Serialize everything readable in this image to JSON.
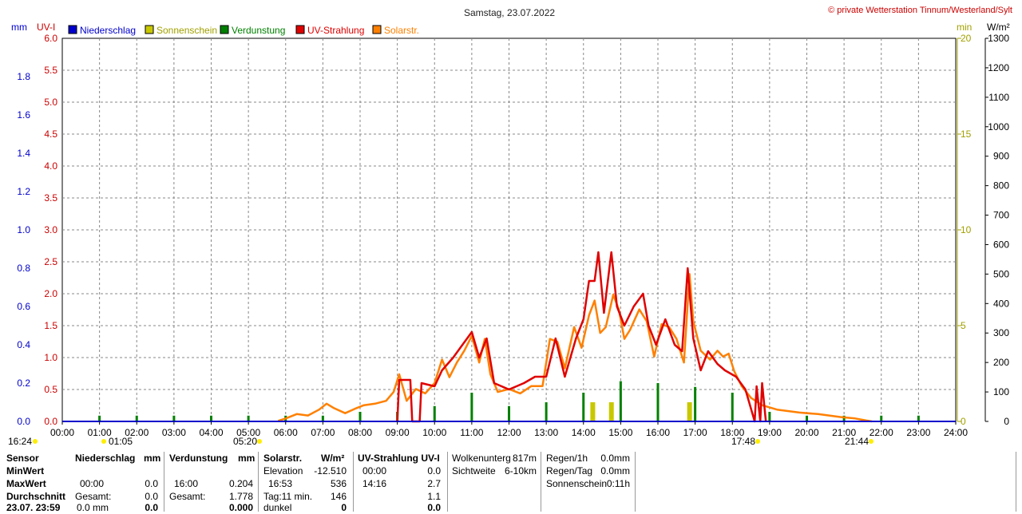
{
  "header": {
    "title": "Samstag, 23.07.2022",
    "copyright": "© private Wetterstation Tinnum/Westerland/Sylt",
    "unit_mm": "mm",
    "unit_uv": "UV-I",
    "unit_min": "min",
    "unit_wm2": "W/m²"
  },
  "legend": [
    {
      "label": "Niederschlag",
      "color": "#0000cc"
    },
    {
      "label": "Sonnenschein",
      "color": "#c8c800"
    },
    {
      "label": "Verdunstung",
      "color": "#008000"
    },
    {
      "label": "UV-Strahlung",
      "color": "#e00000"
    },
    {
      "label": "Solarstr.",
      "color": "#ff8000"
    }
  ],
  "chart_data": {
    "type": "line",
    "x_axis": {
      "ticks": [
        "00:00",
        "01:00",
        "02:00",
        "03:00",
        "04:00",
        "05:00",
        "06:00",
        "07:00",
        "08:00",
        "09:00",
        "10:00",
        "11:00",
        "12:00",
        "13:00",
        "14:00",
        "15:00",
        "16:00",
        "17:00",
        "18:00",
        "19:00",
        "20:00",
        "21:00",
        "22:00",
        "23:00",
        "24:00"
      ],
      "range_hours": [
        0,
        24
      ]
    },
    "axes": {
      "mm": {
        "ticks": [
          "1.8",
          "1.6",
          "1.4",
          "1.2",
          "1.0",
          "0.8",
          "0.6",
          "0.4",
          "0.2",
          "0.0"
        ],
        "range": [
          0,
          2.0
        ],
        "color": "#0000cc"
      },
      "uv": {
        "ticks": [
          "6.0",
          "5.5",
          "5.0",
          "4.5",
          "4.0",
          "3.5",
          "3.0",
          "2.5",
          "2.0",
          "1.5",
          "1.0",
          "0.5",
          "0.0"
        ],
        "range": [
          0,
          6.0
        ],
        "color": "#cc0000"
      },
      "min": {
        "ticks": [
          "20",
          "15",
          "10",
          "5",
          "0"
        ],
        "range": [
          0,
          20
        ],
        "color": "#a0a000"
      },
      "wm2": {
        "ticks": [
          "1300",
          "1200",
          "1100",
          "1000",
          "900",
          "800",
          "700",
          "600",
          "500",
          "400",
          "300",
          "200",
          "100",
          "0"
        ],
        "range": [
          0,
          1300
        ],
        "color": "#000000"
      }
    },
    "grid": true,
    "events": [
      {
        "label": "16:24",
        "hour": 0.0,
        "row": 1
      },
      {
        "label": "01:05",
        "hour": 1.08,
        "row": 1
      },
      {
        "label": "05:20",
        "hour": 5.33,
        "row": 1
      },
      {
        "label": "17:48",
        "hour": 17.8,
        "row": 1
      },
      {
        "label": "21:44",
        "hour": 21.73,
        "row": 1
      }
    ],
    "series": [
      {
        "name": "Solarstr.",
        "axis": "wm2",
        "color": "#ff8000",
        "points": [
          [
            5.8,
            2
          ],
          [
            6.0,
            10
          ],
          [
            6.3,
            25
          ],
          [
            6.6,
            20
          ],
          [
            6.9,
            40
          ],
          [
            7.1,
            60
          ],
          [
            7.3,
            45
          ],
          [
            7.6,
            28
          ],
          [
            7.9,
            45
          ],
          [
            8.1,
            55
          ],
          [
            8.4,
            60
          ],
          [
            8.7,
            70
          ],
          [
            8.9,
            100
          ],
          [
            9.05,
            160
          ],
          [
            9.25,
            70
          ],
          [
            9.5,
            110
          ],
          [
            9.75,
            95
          ],
          [
            10.0,
            130
          ],
          [
            10.2,
            210
          ],
          [
            10.4,
            150
          ],
          [
            10.6,
            200
          ],
          [
            10.8,
            240
          ],
          [
            11.0,
            290
          ],
          [
            11.2,
            200
          ],
          [
            11.35,
            280
          ],
          [
            11.5,
            160
          ],
          [
            11.7,
            100
          ],
          [
            12.0,
            110
          ],
          [
            12.3,
            95
          ],
          [
            12.6,
            120
          ],
          [
            12.9,
            120
          ],
          [
            13.1,
            280
          ],
          [
            13.3,
            270
          ],
          [
            13.5,
            180
          ],
          [
            13.75,
            320
          ],
          [
            13.95,
            250
          ],
          [
            14.15,
            360
          ],
          [
            14.3,
            410
          ],
          [
            14.45,
            300
          ],
          [
            14.6,
            320
          ],
          [
            14.8,
            430
          ],
          [
            14.95,
            380
          ],
          [
            15.1,
            280
          ],
          [
            15.25,
            310
          ],
          [
            15.5,
            380
          ],
          [
            15.7,
            340
          ],
          [
            15.9,
            220
          ],
          [
            16.1,
            330
          ],
          [
            16.3,
            320
          ],
          [
            16.5,
            280
          ],
          [
            16.7,
            200
          ],
          [
            16.85,
            500
          ],
          [
            16.95,
            340
          ],
          [
            17.15,
            240
          ],
          [
            17.4,
            210
          ],
          [
            17.6,
            240
          ],
          [
            17.75,
            220
          ],
          [
            17.9,
            230
          ],
          [
            18.05,
            170
          ],
          [
            18.25,
            120
          ],
          [
            18.5,
            80
          ],
          [
            18.8,
            55
          ],
          [
            19.2,
            40
          ],
          [
            19.8,
            30
          ],
          [
            20.3,
            25
          ],
          [
            20.9,
            15
          ],
          [
            21.3,
            10
          ],
          [
            21.6,
            3
          ],
          [
            21.75,
            0
          ]
        ]
      },
      {
        "name": "UV-Strahlung",
        "axis": "uv",
        "color": "#e00000",
        "points": [
          [
            9.0,
            0
          ],
          [
            9.05,
            0.65
          ],
          [
            9.35,
            0.65
          ],
          [
            9.4,
            0
          ],
          [
            9.6,
            0
          ],
          [
            9.65,
            0.6
          ],
          [
            10.0,
            0.55
          ],
          [
            10.2,
            0.8
          ],
          [
            10.5,
            1.0
          ],
          [
            10.75,
            1.2
          ],
          [
            11.0,
            1.4
          ],
          [
            11.2,
            1.0
          ],
          [
            11.4,
            1.3
          ],
          [
            11.6,
            0.6
          ],
          [
            12.0,
            0.5
          ],
          [
            12.4,
            0.6
          ],
          [
            12.7,
            0.7
          ],
          [
            13.0,
            0.7
          ],
          [
            13.25,
            1.3
          ],
          [
            13.5,
            0.7
          ],
          [
            13.8,
            1.3
          ],
          [
            14.0,
            1.6
          ],
          [
            14.15,
            2.2
          ],
          [
            14.3,
            2.2
          ],
          [
            14.4,
            2.65
          ],
          [
            14.55,
            1.7
          ],
          [
            14.75,
            2.65
          ],
          [
            14.9,
            1.8
          ],
          [
            15.1,
            1.5
          ],
          [
            15.35,
            1.8
          ],
          [
            15.6,
            2.0
          ],
          [
            15.75,
            1.5
          ],
          [
            15.95,
            1.2
          ],
          [
            16.2,
            1.6
          ],
          [
            16.45,
            1.2
          ],
          [
            16.65,
            1.1
          ],
          [
            16.8,
            2.4
          ],
          [
            16.95,
            1.3
          ],
          [
            17.15,
            0.8
          ],
          [
            17.35,
            1.1
          ],
          [
            17.6,
            0.9
          ],
          [
            17.8,
            0.8
          ],
          [
            18.1,
            0.7
          ],
          [
            18.35,
            0.5
          ],
          [
            18.6,
            0
          ],
          [
            18.65,
            0.55
          ],
          [
            18.75,
            0
          ],
          [
            18.8,
            0.6
          ],
          [
            18.9,
            0
          ]
        ]
      }
    ],
    "bars": [
      {
        "name": "Verdunstung",
        "axis": "min",
        "color": "#008000",
        "points": [
          [
            1.0,
            0.3
          ],
          [
            2.0,
            0.3
          ],
          [
            3.0,
            0.3
          ],
          [
            4.0,
            0.3
          ],
          [
            5.0,
            0.3
          ],
          [
            6.0,
            0.3
          ],
          [
            7.0,
            0.3
          ],
          [
            8.0,
            0.5
          ],
          [
            9.0,
            0.5
          ],
          [
            10.0,
            0.8
          ],
          [
            11.0,
            1.5
          ],
          [
            12.0,
            0.8
          ],
          [
            13.0,
            1.0
          ],
          [
            14.0,
            1.5
          ],
          [
            15.0,
            2.1
          ],
          [
            16.0,
            2.0
          ],
          [
            17.0,
            1.8
          ],
          [
            18.0,
            1.5
          ],
          [
            19.0,
            0.5
          ],
          [
            20.0,
            0.3
          ],
          [
            21.0,
            0.3
          ],
          [
            22.0,
            0.3
          ],
          [
            23.0,
            0.3
          ]
        ]
      },
      {
        "name": "Sonnenschein",
        "axis": "min",
        "color": "#c8c800",
        "points": [
          [
            14.25,
            1.0
          ],
          [
            14.75,
            1.0
          ],
          [
            16.85,
            1.0
          ]
        ]
      }
    ]
  },
  "footer": {
    "rows": [
      "Sensor",
      "MinWert",
      "MaxWert",
      "Durchschnitt",
      "23.07. 23:59"
    ],
    "niederschlag": {
      "header": "Niederschlag",
      "unit": "mm",
      "min_time": "",
      "min_val": "",
      "max_time": "00:00",
      "max_val": "0.0",
      "avg_label": "Gesamt:",
      "avg_val": "0.0",
      "last_time": "0.0 mm",
      "last_val": "0.0"
    },
    "verdunstung": {
      "header": "Verdunstung",
      "unit": "mm",
      "max_time": "16:00",
      "max_val": "0.204",
      "avg_label": "Gesamt:",
      "avg_val": "1.778",
      "last_val": "0.000"
    },
    "solar": {
      "header": "Solarstr.",
      "unit": "W/m²",
      "min_label": "Elevation",
      "min_val": "-12.510",
      "max_time": "16:53",
      "max_val": "536",
      "avg_label": "Tag:11 min.",
      "avg_val": "146",
      "last_label": "dunkel",
      "last_val": "0"
    },
    "uv": {
      "header": "UV-Strahlung UV-I",
      "min_time": "00:00",
      "min_val": "0.0",
      "max_time": "14:16",
      "max_val": "2.7",
      "avg_val": "1.1",
      "last_val": "0.0"
    },
    "misc": {
      "wolken_label": "Wolkenunterg",
      "wolken_val": "817m",
      "sicht_label": "Sichtweite",
      "sicht_val": "6-10km"
    },
    "regen": {
      "r1_label": "Regen/1h",
      "r1_val": "0.0mm",
      "rt_label": "Regen/Tag",
      "rt_val": "0.0mm",
      "sun_label": "Sonnenschein",
      "sun_val": "0:11h"
    }
  }
}
